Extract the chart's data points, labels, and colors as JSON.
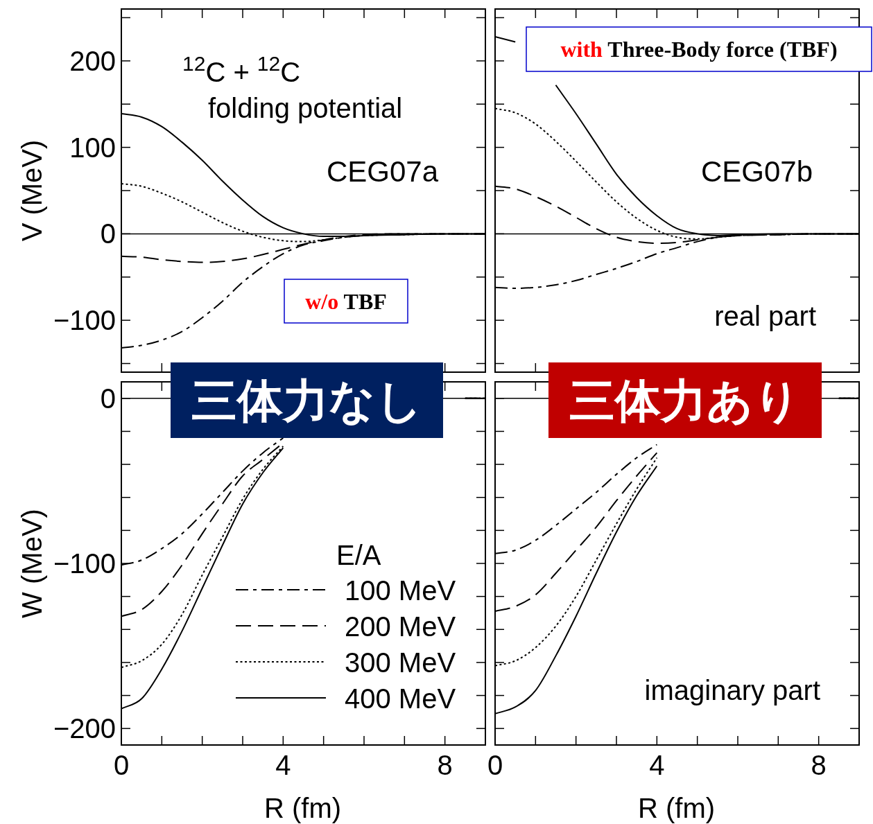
{
  "chart_data": [
    {
      "type": "line",
      "ylabel": "V (MeV)",
      "annotations": [
        "$^{12}$C + $^{12}$C",
        "folding potential",
        "CEG07a",
        "w/o TBF"
      ],
      "x": [
        0,
        0.5,
        1,
        1.5,
        2,
        2.5,
        3,
        3.5,
        4,
        4.5,
        5,
        5.5,
        6,
        7,
        8,
        9
      ],
      "series": [
        {
          "color": "#000000",
          "line_style": "dashdot",
          "values": [
            -132,
            -129,
            -123,
            -113,
            -97,
            -78,
            -56,
            -38,
            -23,
            -13,
            -8,
            -4,
            -2,
            0,
            0,
            0
          ]
        },
        {
          "color": "#000000",
          "line_style": "dashed",
          "values": [
            -26,
            -27,
            -30,
            -32,
            -33,
            -32,
            -29,
            -24,
            -18,
            -12,
            -7,
            -3,
            -1,
            0,
            0,
            0
          ]
        },
        {
          "color": "#000000",
          "line_style": "dotted",
          "values": [
            58,
            55,
            47,
            37,
            25,
            13,
            3,
            -4,
            -8,
            -9,
            -7,
            -4,
            -2,
            -1,
            0,
            0
          ]
        },
        {
          "color": "#000000",
          "line_style": "solid",
          "values": [
            139,
            135,
            124,
            106,
            85,
            61,
            39,
            20,
            7,
            0,
            -3,
            -3,
            -2,
            -1,
            0,
            0
          ]
        }
      ],
      "ref_lines": [
        {
          "axis": "y",
          "value": 0,
          "color": "#000000"
        }
      ],
      "xlim": [
        0,
        9
      ],
      "ylim": [
        -160,
        260
      ],
      "xticks": [
        0,
        {
          "value": 1,
          "label": null
        },
        {
          "value": 2,
          "label": null
        },
        {
          "value": 3,
          "label": null
        },
        4,
        {
          "value": 5,
          "label": null
        },
        {
          "value": 6,
          "label": null
        },
        {
          "value": 7,
          "label": null
        },
        8
      ],
      "yticks": [
        {
          "value": -150,
          "label": null
        },
        {
          "value": -100,
          "label": "−100"
        },
        {
          "value": -50,
          "label": null
        },
        0,
        {
          "value": 50,
          "label": null
        },
        100,
        {
          "value": 150,
          "label": null
        },
        200,
        {
          "value": 250,
          "label": null
        }
      ],
      "tick_labels": "y"
    },
    {
      "type": "line",
      "annotations": [
        "with Three-Body force (TBF)",
        "CEG07b",
        "real part"
      ],
      "x": [
        0,
        0.5,
        1,
        1.5,
        2,
        2.5,
        3,
        3.5,
        4,
        4.5,
        5,
        5.5,
        6,
        7,
        8,
        9
      ],
      "series": [
        {
          "color": "#000000",
          "line_style": "dashdot",
          "values": [
            -62,
            -63,
            -62,
            -59,
            -54,
            -47,
            -40,
            -32,
            -23,
            -16,
            -9,
            -4,
            -2,
            -1,
            0,
            0
          ]
        },
        {
          "color": "#000000",
          "line_style": "dashed",
          "values": [
            55,
            52,
            43,
            32,
            19,
            6,
            -4,
            -9,
            -11,
            -10,
            -7,
            -4,
            -2,
            -1,
            0,
            0
          ]
        },
        {
          "color": "#000000",
          "line_style": "dotted",
          "values": [
            145,
            140,
            127,
            107,
            84,
            60,
            37,
            18,
            4,
            -4,
            -6,
            -4,
            -2,
            -1,
            0,
            0
          ]
        },
        {
          "color": "#000000",
          "line_style": "solid",
          "values": [
            228,
            222,
            null,
            172,
            139,
            104,
            69,
            42,
            21,
            6,
            0,
            -2,
            -1,
            0,
            0,
            0
          ]
        }
      ],
      "ref_lines": [
        {
          "axis": "y",
          "value": 0,
          "color": "#000000"
        }
      ],
      "xlim": [
        0,
        9
      ],
      "ylim": [
        -160,
        260
      ],
      "xticks": [
        {
          "value": 0,
          "label": null
        },
        {
          "value": 1,
          "label": null
        },
        {
          "value": 2,
          "label": null
        },
        {
          "value": 3,
          "label": null
        },
        {
          "value": 4,
          "label": null
        },
        {
          "value": 5,
          "label": null
        },
        {
          "value": 6,
          "label": null
        },
        {
          "value": 7,
          "label": null
        },
        {
          "value": 8,
          "label": null
        }
      ],
      "yticks": [
        {
          "value": -150,
          "label": null
        },
        {
          "value": -100,
          "label": null
        },
        {
          "value": -50,
          "label": null
        },
        {
          "value": 0,
          "label": null
        },
        {
          "value": 50,
          "label": null
        },
        {
          "value": 100,
          "label": null
        },
        {
          "value": 150,
          "label": null
        },
        {
          "value": 200,
          "label": null
        },
        {
          "value": 250,
          "label": null
        }
      ],
      "tick_labels": false
    },
    {
      "type": "line",
      "ylabel": "W (MeV)",
      "xlabel": "R (fm)",
      "legend_title": "E/A",
      "legend": "bottom right",
      "annotations": [
        "三体力なし"
      ],
      "x": [
        0,
        0.5,
        1,
        1.5,
        2,
        2.5,
        3,
        3.5,
        4,
        6,
        8.5,
        9
      ],
      "series": [
        {
          "name": "100 MeV",
          "color": "#000000",
          "line_style": "dashdot",
          "values": [
            -101,
            -98,
            -91,
            -82,
            -70,
            -57,
            -44,
            -33,
            -24,
            null,
            0,
            0
          ]
        },
        {
          "name": "200 MeV",
          "color": "#000000",
          "line_style": "dashed",
          "values": [
            -132,
            -128,
            -117,
            -101,
            -82,
            -64,
            -47,
            -37,
            -27,
            null,
            0,
            0
          ]
        },
        {
          "name": "300 MeV",
          "color": "#000000",
          "line_style": "dotted",
          "values": [
            -163,
            -159,
            -149,
            -131,
            -107,
            -84,
            -61,
            -43,
            -29,
            null,
            0,
            0
          ]
        },
        {
          "name": "400 MeV",
          "color": "#000000",
          "line_style": "solid",
          "values": [
            -188,
            -182,
            -164,
            -141,
            -115,
            -89,
            -64,
            -45,
            -30,
            null,
            0,
            0
          ]
        }
      ],
      "ref_lines": [
        {
          "axis": "y",
          "value": 0,
          "color": "#000000"
        }
      ],
      "xlim": [
        0,
        9
      ],
      "ylim": [
        -210,
        10
      ],
      "xticks": [
        0,
        {
          "value": 1,
          "label": null
        },
        {
          "value": 2,
          "label": null
        },
        {
          "value": 3,
          "label": null
        },
        4,
        {
          "value": 5,
          "label": null
        },
        {
          "value": 6,
          "label": null
        },
        {
          "value": 7,
          "label": null
        },
        8
      ],
      "yticks": [
        {
          "value": -200,
          "label": "−200"
        },
        {
          "value": -180,
          "label": null
        },
        {
          "value": -160,
          "label": null
        },
        {
          "value": -140,
          "label": null
        },
        {
          "value": -120,
          "label": null
        },
        {
          "value": -100,
          "label": "−100"
        },
        {
          "value": -80,
          "label": null
        },
        {
          "value": -60,
          "label": null
        },
        {
          "value": -40,
          "label": null
        },
        {
          "value": -20,
          "label": null
        },
        0
      ]
    },
    {
      "type": "line",
      "xlabel": "R (fm)",
      "annotations": [
        "三体力あり",
        "imaginary part"
      ],
      "x": [
        0,
        0.5,
        1,
        1.5,
        2,
        2.5,
        3,
        3.5,
        4,
        6,
        8.5,
        9
      ],
      "series": [
        {
          "color": "#000000",
          "line_style": "dashdot",
          "values": [
            -94,
            -92,
            -86,
            -77,
            -67,
            -57,
            -46,
            -36,
            -28,
            null,
            0,
            0
          ]
        },
        {
          "color": "#000000",
          "line_style": "dashed",
          "values": [
            -129,
            -126,
            -119,
            -106,
            -92,
            -78,
            -62,
            -47,
            -33,
            null,
            0,
            0
          ]
        },
        {
          "color": "#000000",
          "line_style": "dotted",
          "values": [
            -162,
            -159,
            -151,
            -138,
            -120,
            -98,
            -76,
            -55,
            -36,
            null,
            0,
            0
          ]
        },
        {
          "color": "#000000",
          "line_style": "solid",
          "values": [
            -191,
            -187,
            -177,
            -156,
            -132,
            -106,
            -81,
            -59,
            -41,
            null,
            0,
            0
          ]
        }
      ],
      "ref_lines": [
        {
          "axis": "y",
          "value": 0,
          "color": "#000000"
        }
      ],
      "xlim": [
        0,
        9
      ],
      "ylim": [
        -210,
        10
      ],
      "xticks": [
        0,
        {
          "value": 1,
          "label": null
        },
        {
          "value": 2,
          "label": null
        },
        {
          "value": 3,
          "label": null
        },
        4,
        {
          "value": 5,
          "label": null
        },
        {
          "value": 6,
          "label": null
        },
        {
          "value": 7,
          "label": null
        },
        8
      ],
      "yticks": [
        {
          "value": -200,
          "label": null
        },
        {
          "value": -180,
          "label": null
        },
        {
          "value": -160,
          "label": null
        },
        {
          "value": -140,
          "label": null
        },
        {
          "value": -120,
          "label": null
        },
        {
          "value": -100,
          "label": null
        },
        {
          "value": -80,
          "label": null
        },
        {
          "value": -60,
          "label": null
        },
        {
          "value": -40,
          "label": null
        },
        {
          "value": -20,
          "label": null
        },
        {
          "value": 0,
          "label": null
        }
      ],
      "tick_labels": "x"
    }
  ]
}
